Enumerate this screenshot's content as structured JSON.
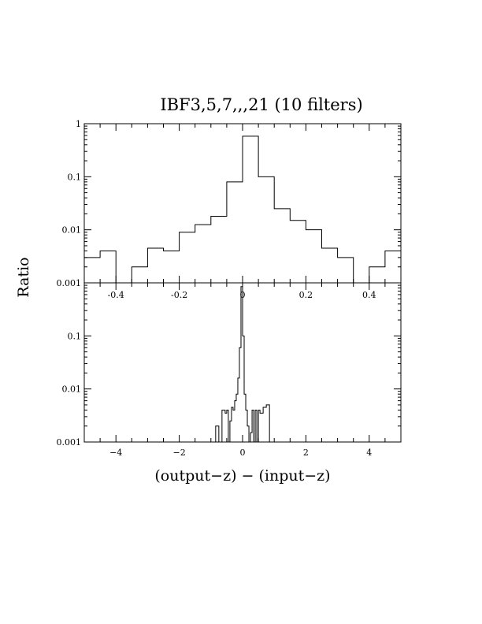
{
  "chart_data": [
    {
      "panel": "top",
      "type": "histogram",
      "title": "IBF3,5,7,,,21 (10 filters)",
      "xlabel": "",
      "ylabel": "Ratio",
      "xscale": "linear",
      "yscale": "log",
      "xlim": [
        -0.5,
        0.5
      ],
      "ylim": [
        0.001,
        1
      ],
      "grid": false,
      "x_ticks": [
        -0.4,
        -0.2,
        0,
        0.2,
        0.4
      ],
      "x_tick_labels": [
        "-0.4",
        "-0.2",
        "0",
        "0.2",
        "0.4"
      ],
      "y_ticks": [
        0.001,
        0.01,
        0.1,
        1
      ],
      "y_tick_labels": [
        "0.001",
        "0.01",
        "0.1",
        "1"
      ],
      "bin_edges": [
        -0.5,
        -0.45,
        -0.4,
        -0.35,
        -0.3,
        -0.25,
        -0.2,
        -0.15,
        -0.1,
        -0.05,
        0,
        0.05,
        0.1,
        0.15,
        0.2,
        0.25,
        0.3,
        0.35,
        0.4,
        0.45,
        0.5
      ],
      "values": [
        0.003,
        0.004,
        0,
        0.002,
        0.0045,
        0.004,
        0.009,
        0.0125,
        0.018,
        0.08,
        0.58,
        0.1,
        0.025,
        0.015,
        0.01,
        0.0045,
        0.003,
        0,
        0.002,
        0.004
      ]
    },
    {
      "panel": "bottom",
      "type": "histogram",
      "xlabel": "(output−z) − (input−z)",
      "ylabel": "Ratio",
      "xscale": "linear",
      "yscale": "log",
      "xlim": [
        -5,
        5
      ],
      "ylim": [
        0.001,
        1
      ],
      "grid": false,
      "x_ticks": [
        -4,
        -2,
        0,
        2,
        4
      ],
      "x_tick_labels": [
        "−4",
        "−2",
        "0",
        "2",
        "4"
      ],
      "y_ticks": [
        0.001,
        0.01,
        0.1
      ],
      "y_tick_labels": [
        "0.001",
        "0.01",
        "0.1"
      ],
      "bin_edges": [
        -0.85,
        -0.75,
        -0.65,
        -0.55,
        -0.5,
        -0.45,
        -0.4,
        -0.35,
        -0.3,
        -0.25,
        -0.2,
        -0.15,
        -0.1,
        -0.05,
        0,
        0.05,
        0.1,
        0.15,
        0.2,
        0.25,
        0.3,
        0.35,
        0.4,
        0.45,
        0.5,
        0.55,
        0.65,
        0.75,
        0.85,
        0.95
      ],
      "values": [
        0.002,
        0,
        0.004,
        0.0035,
        0.004,
        0,
        0.0025,
        0.0045,
        0.004,
        0.006,
        0.008,
        0.016,
        0.06,
        0.85,
        0.1,
        0.008,
        0.004,
        0.002,
        0,
        0.0015,
        0.004,
        0,
        0.004,
        0,
        0.004,
        0.0035,
        0.0045,
        0.005,
        0
      ]
    }
  ]
}
